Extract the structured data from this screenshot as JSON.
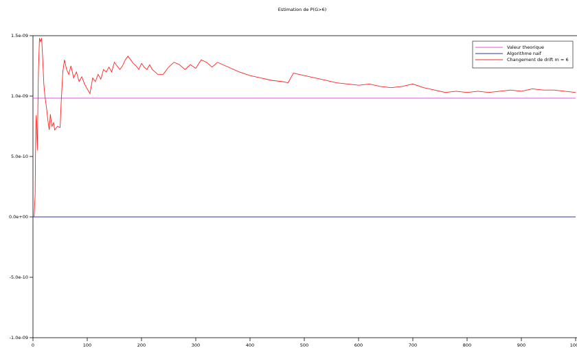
{
  "chart_data": {
    "type": "line",
    "title": "Estimation de P(G>6)",
    "xlim": [
      0,
      1000
    ],
    "xticks": [
      0,
      100,
      200,
      300,
      400,
      500,
      600,
      700,
      800,
      900,
      1000
    ],
    "ylim": [
      -1e-09,
      1.5e-09
    ],
    "yticks": [
      {
        "value": -1e-09,
        "label": "-1.0e-09"
      },
      {
        "value": -5e-10,
        "label": "-5.0e-10"
      },
      {
        "value": 0,
        "label": "0.0e+00"
      },
      {
        "value": 5e-10,
        "label": "5.0e-10"
      },
      {
        "value": 1e-09,
        "label": "1.0e-09"
      },
      {
        "value": 1.5e-09,
        "label": "1.5e-09"
      }
    ],
    "legend": "upper right",
    "series": [
      {
        "name": "Valeur theorique",
        "color": "#e050e0",
        "x": [
          0,
          1000
        ],
        "values": [
          9.83e-10,
          9.83e-10
        ]
      },
      {
        "name": "Algorithme naif",
        "color": "#3030b0",
        "x": [
          0,
          1000
        ],
        "values": [
          0,
          0
        ]
      },
      {
        "name": "Changement de drift  m = 6",
        "color": "#ff2020",
        "x": [
          2,
          4,
          5,
          6,
          8,
          10,
          12,
          14,
          16,
          18,
          20,
          22,
          25,
          28,
          30,
          32,
          35,
          38,
          40,
          45,
          50,
          52,
          55,
          58,
          62,
          66,
          70,
          75,
          80,
          85,
          90,
          95,
          100,
          105,
          110,
          115,
          120,
          125,
          130,
          135,
          140,
          145,
          150,
          155,
          160,
          165,
          170,
          175,
          180,
          185,
          190,
          195,
          200,
          205,
          210,
          215,
          220,
          225,
          230,
          240,
          250,
          260,
          270,
          280,
          290,
          300,
          310,
          320,
          330,
          340,
          350,
          360,
          380,
          400,
          420,
          440,
          460,
          470,
          480,
          500,
          520,
          540,
          560,
          580,
          600,
          620,
          640,
          660,
          680,
          700,
          720,
          740,
          760,
          780,
          800,
          820,
          840,
          860,
          880,
          900,
          920,
          940,
          960,
          980,
          1000
        ],
        "values": [
          0,
          1.8e-10,
          7e-10,
          8.4e-10,
          5.5e-10,
          1.2e-09,
          1.48e-09,
          1.45e-09,
          1.48e-09,
          1.3e-09,
          1.1e-09,
          1e-09,
          9e-10,
          7.8e-10,
          7.2e-10,
          8.5e-10,
          7.5e-10,
          7.8e-10,
          7.2e-10,
          7.5e-10,
          7.4e-10,
          9.5e-10,
          1.2e-09,
          1.3e-09,
          1.22e-09,
          1.18e-09,
          1.25e-09,
          1.15e-09,
          1.2e-09,
          1.12e-09,
          1.16e-09,
          1.1e-09,
          1.06e-09,
          1.02e-09,
          1.15e-09,
          1.12e-09,
          1.18e-09,
          1.14e-09,
          1.22e-09,
          1.2e-09,
          1.24e-09,
          1.2e-09,
          1.28e-09,
          1.25e-09,
          1.22e-09,
          1.25e-09,
          1.3e-09,
          1.33e-09,
          1.3e-09,
          1.27e-09,
          1.25e-09,
          1.22e-09,
          1.27e-09,
          1.24e-09,
          1.22e-09,
          1.26e-09,
          1.22e-09,
          1.2e-09,
          1.18e-09,
          1.18e-09,
          1.24e-09,
          1.28e-09,
          1.26e-09,
          1.22e-09,
          1.26e-09,
          1.23e-09,
          1.3e-09,
          1.28e-09,
          1.24e-09,
          1.28e-09,
          1.26e-09,
          1.24e-09,
          1.2e-09,
          1.17e-09,
          1.15e-09,
          1.13e-09,
          1.12e-09,
          1.11e-09,
          1.19e-09,
          1.17e-09,
          1.15e-09,
          1.13e-09,
          1.11e-09,
          1.1e-09,
          1.09e-09,
          1.1e-09,
          1.08e-09,
          1.07e-09,
          1.08e-09,
          1.1e-09,
          1.07e-09,
          1.05e-09,
          1.03e-09,
          1.04e-09,
          1.03e-09,
          1.04e-09,
          1.03e-09,
          1.04e-09,
          1.05e-09,
          1.04e-09,
          1.06e-09,
          1.05e-09,
          1.05e-09,
          1.04e-09,
          1.03e-09
        ]
      }
    ]
  }
}
